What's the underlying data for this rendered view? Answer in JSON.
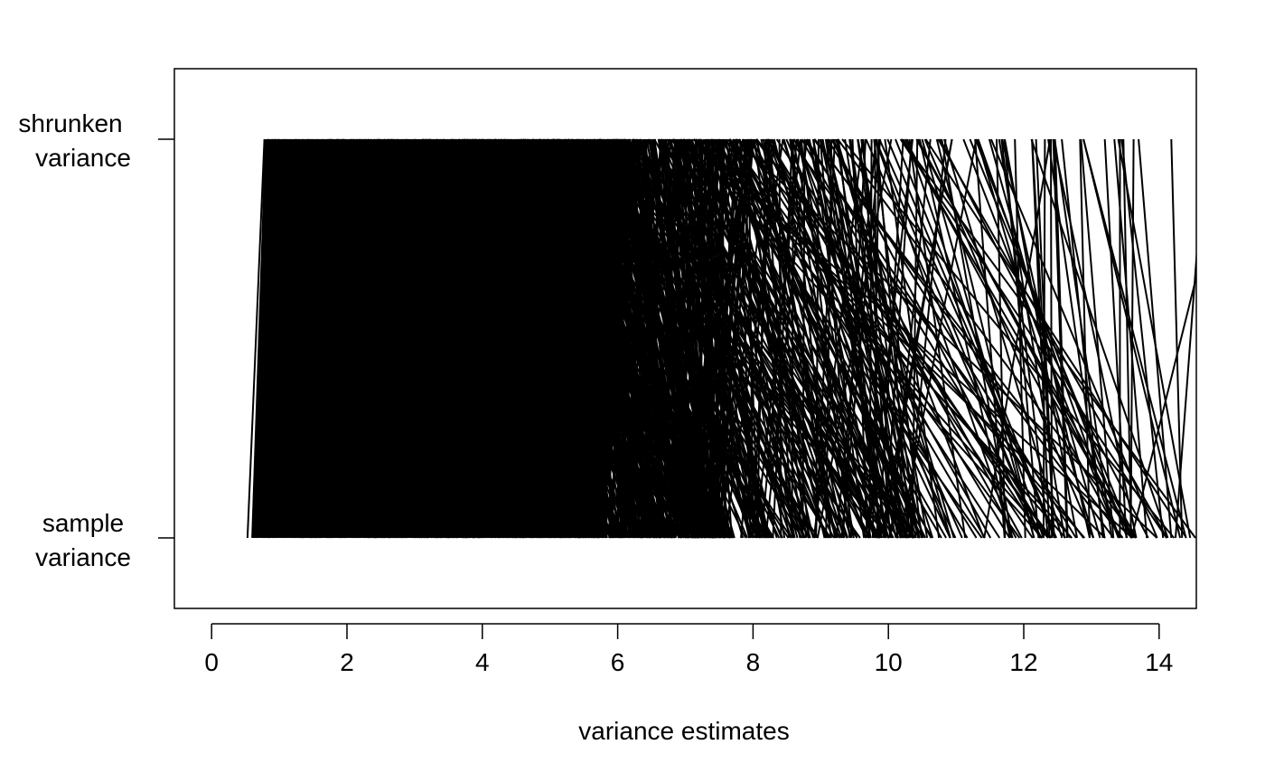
{
  "chart_data": {
    "type": "line",
    "xlabel": "variance estimates",
    "ylabel": "",
    "x_ticks": [
      0,
      2,
      4,
      6,
      8,
      10,
      12,
      14
    ],
    "xlim": [
      -0.55,
      14.55
    ],
    "y_categories": [
      {
        "label_line1": "shrunken",
        "label_line2": "variance",
        "level": 1
      },
      {
        "label_line1": "sample",
        "label_line2": "variance",
        "level": 0
      }
    ],
    "shrunken_range": [
      0.75,
      14.5
    ],
    "sample_range": [
      0.5,
      14.5
    ],
    "legend": "none",
    "grid": false,
    "description_of_series": "one line per gene connecting sample variance to shrunken variance"
  }
}
